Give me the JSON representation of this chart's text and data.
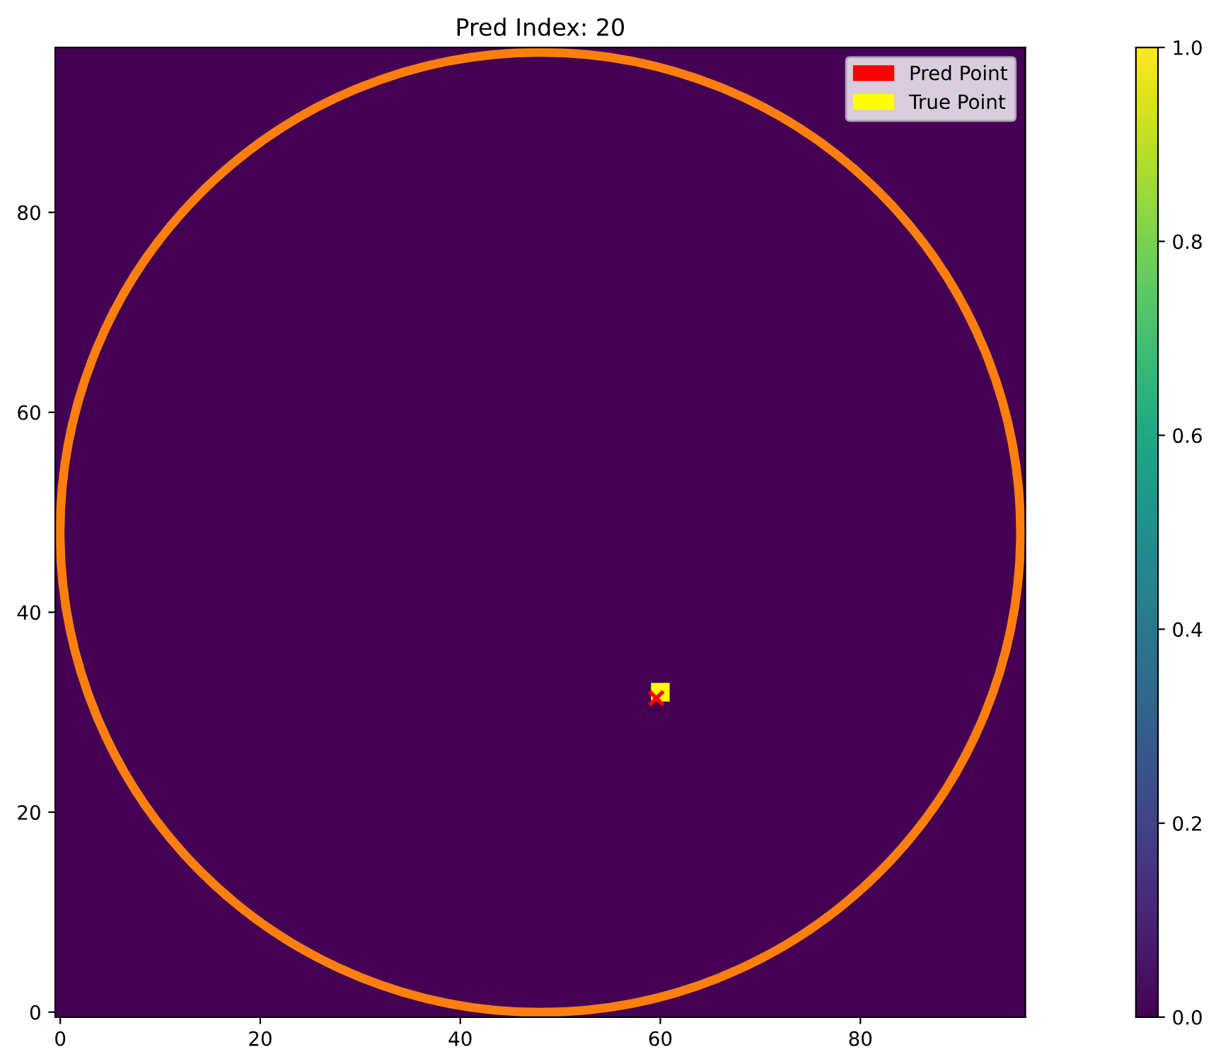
{
  "chart_data": {
    "type": "scatter",
    "title": "Pred Index: 20",
    "xlim": [
      -0.5,
      96.5
    ],
    "ylim": [
      -0.5,
      96.5
    ],
    "xticks": [
      0,
      20,
      40,
      60,
      80
    ],
    "yticks": [
      0,
      20,
      40,
      60,
      80
    ],
    "clim": [
      0,
      1
    ],
    "cticks": [
      {
        "value": 0,
        "label": "0.0"
      },
      0.2,
      0.4,
      0.6,
      0.8,
      {
        "value": 1,
        "label": "1.0"
      }
    ],
    "grid": false,
    "legend": "top right",
    "series": [
      {
        "name": "True Point",
        "color": "#ffff00",
        "marker": "square",
        "x": [
          60
        ],
        "values": [
          32
        ]
      },
      {
        "name": "Pred Point",
        "color": "#ff0000",
        "marker": "cross",
        "x": [
          59.6
        ],
        "values": [
          31.4
        ]
      }
    ]
  }
}
